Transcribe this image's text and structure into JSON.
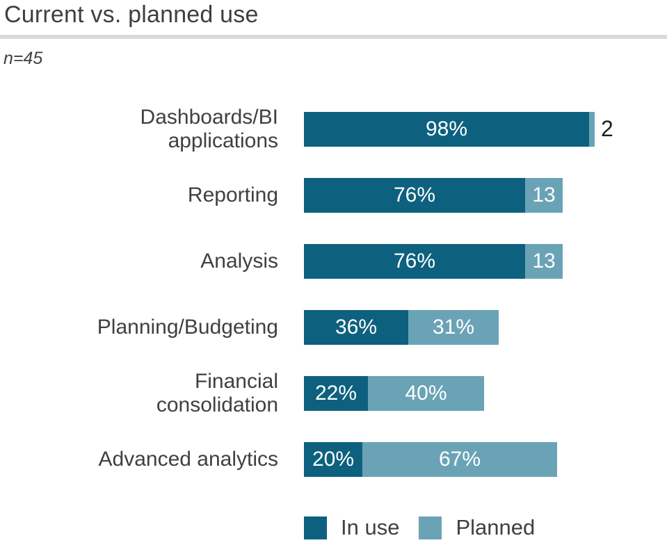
{
  "title": "Current vs. planned use",
  "subtitle": "n=45",
  "colors": {
    "in_use": "#0d617e",
    "planned": "#6aa3b6",
    "title_text": "#3f3f3f",
    "label_text": "#404040",
    "divider": "#dadada",
    "outside_value_text": "#1f1f1f",
    "bar_value_text": "#ffffff"
  },
  "legend": {
    "in_use_label": "In use",
    "planned_label": "Planned"
  },
  "chart_data": {
    "type": "bar",
    "orientation": "horizontal",
    "stacked": true,
    "title": "Current vs. planned use",
    "sample_size": "n=45",
    "xlim": [
      0,
      100
    ],
    "grid": false,
    "legend_position": "bottom",
    "categories": [
      "Dashboards/BI applications",
      "Reporting",
      "Analysis",
      "Planning/Budgeting",
      "Financial consolidation",
      "Advanced analytics"
    ],
    "series": [
      {
        "name": "In use",
        "values": [
          98,
          76,
          76,
          36,
          22,
          20
        ]
      },
      {
        "name": "Planned",
        "values": [
          2,
          13,
          13,
          31,
          40,
          67
        ]
      }
    ],
    "rows": [
      {
        "category_lines": [
          "Dashboards/BI",
          "applications"
        ],
        "in_use": 98,
        "planned": 2,
        "in_use_label": "98%",
        "planned_label": "2",
        "planned_label_outside": true
      },
      {
        "category_lines": [
          "Reporting"
        ],
        "in_use": 76,
        "planned": 13,
        "in_use_label": "76%",
        "planned_label": "13",
        "planned_label_outside": false
      },
      {
        "category_lines": [
          "Analysis"
        ],
        "in_use": 76,
        "planned": 13,
        "in_use_label": "76%",
        "planned_label": "13",
        "planned_label_outside": false
      },
      {
        "category_lines": [
          "Planning/Budgeting"
        ],
        "in_use": 36,
        "planned": 31,
        "in_use_label": "36%",
        "planned_label": "31%",
        "planned_label_outside": false
      },
      {
        "category_lines": [
          "Financial",
          "consolidation"
        ],
        "in_use": 22,
        "planned": 40,
        "in_use_label": "22%",
        "planned_label": "40%",
        "planned_label_outside": false
      },
      {
        "category_lines": [
          "Advanced analytics"
        ],
        "in_use": 20,
        "planned": 67,
        "in_use_label": "20%",
        "planned_label": "67%",
        "planned_label_outside": false
      }
    ]
  }
}
